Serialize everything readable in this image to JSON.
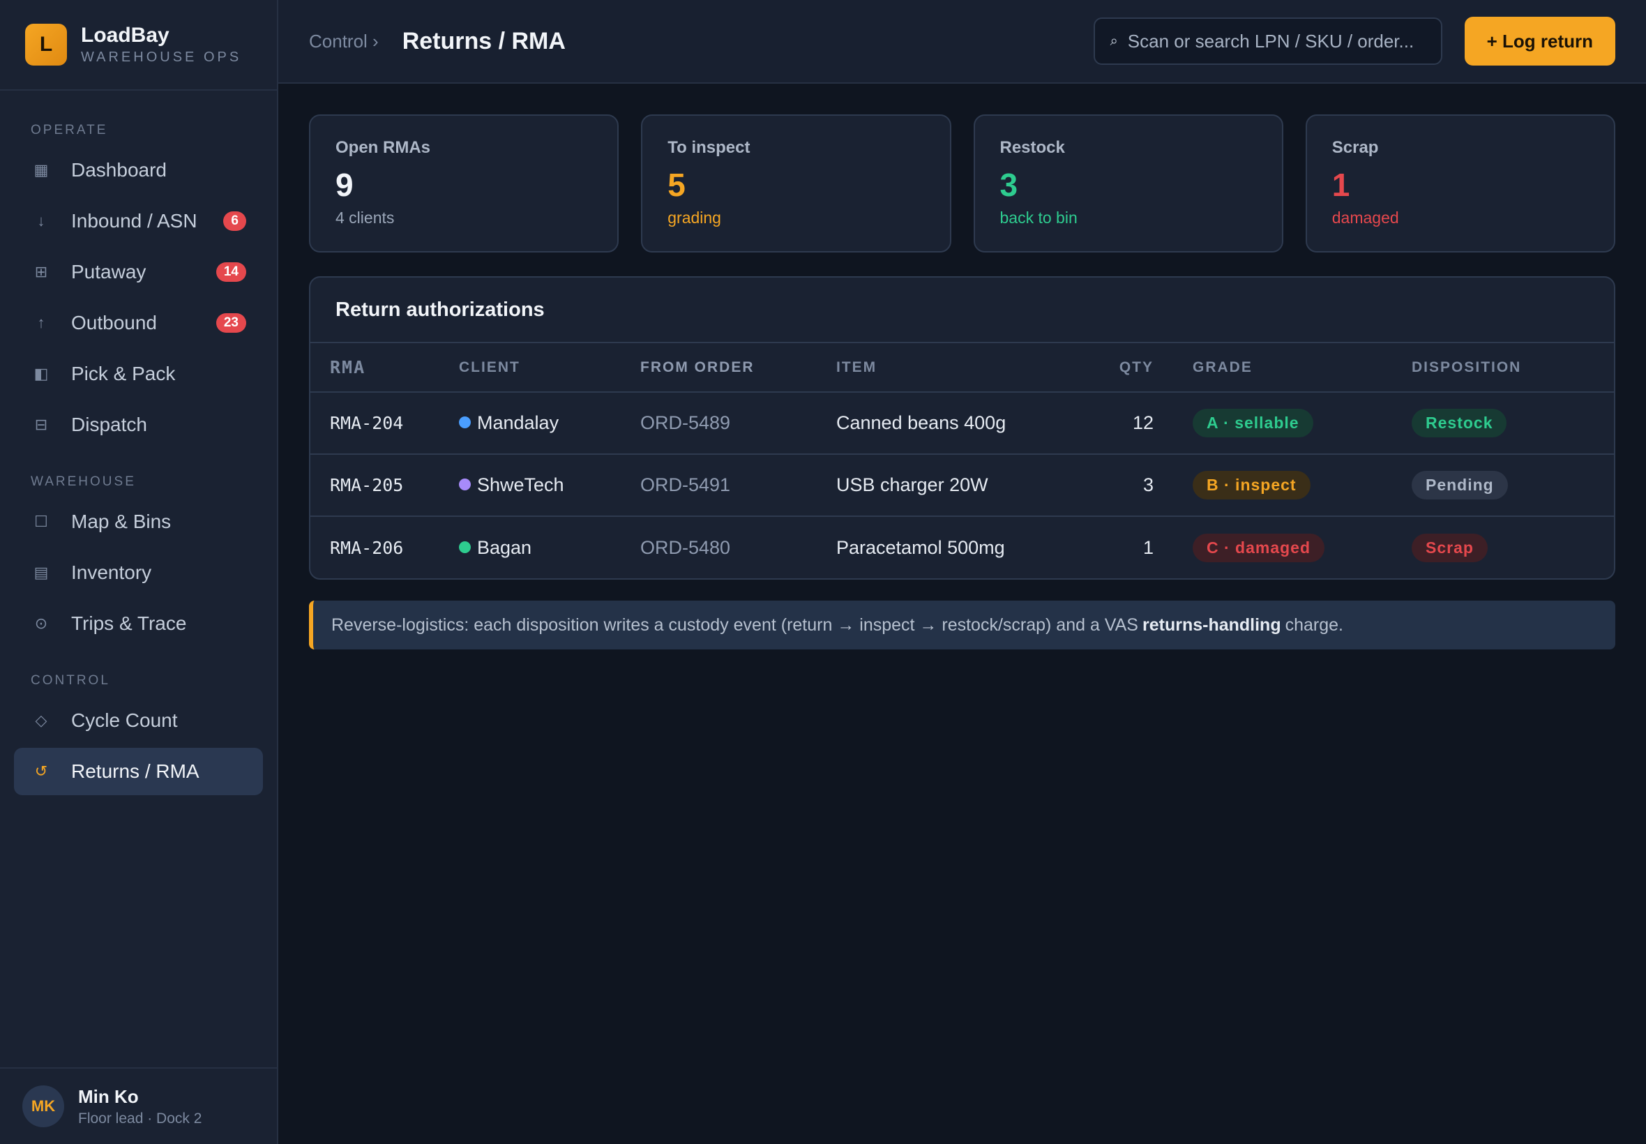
{
  "brand": {
    "logo_letter": "L",
    "name": "LoadBay",
    "subtitle": "WAREHOUSE OPS"
  },
  "sidebar": {
    "sections": {
      "operate": "OPERATE",
      "warehouse": "WAREHOUSE",
      "control": "CONTROL"
    },
    "items": [
      {
        "label": "Dashboard",
        "icon": "dashboard-icon"
      },
      {
        "label": "Inbound / ASN",
        "icon": "arrow-down-icon",
        "badge": "6"
      },
      {
        "label": "Putaway",
        "icon": "grid-icon",
        "badge": "14"
      },
      {
        "label": "Outbound",
        "icon": "arrow-up-icon",
        "badge": "23"
      },
      {
        "label": "Pick & Pack",
        "icon": "box-icon"
      },
      {
        "label": "Dispatch",
        "icon": "truck-icon"
      },
      {
        "label": "Map & Bins",
        "icon": "map-icon"
      },
      {
        "label": "Inventory",
        "icon": "inventory-icon"
      },
      {
        "label": "Trips & Trace",
        "icon": "target-icon"
      },
      {
        "label": "Cycle Count",
        "icon": "diamond-icon"
      },
      {
        "label": "Returns / RMA",
        "icon": "return-icon"
      }
    ]
  },
  "user": {
    "initials": "MK",
    "name": "Min Ko",
    "role": "Floor lead · Dock 2"
  },
  "header": {
    "breadcrumb": "Control ›",
    "title": "Returns / RMA",
    "search_placeholder": "Scan or search LPN / SKU / order...",
    "primary_button": "+ Log return"
  },
  "stats": [
    {
      "label": "Open RMAs",
      "value": "9",
      "sub": "4 clients",
      "color": "#f2f5f9",
      "sub_color": "#9aa6b8"
    },
    {
      "label": "To inspect",
      "value": "5",
      "sub": "grading",
      "color": "#f5a623",
      "sub_color": "#f5a623"
    },
    {
      "label": "Restock",
      "value": "3",
      "sub": "back to bin",
      "color": "#2ecc8f",
      "sub_color": "#2ecc8f"
    },
    {
      "label": "Scrap",
      "value": "1",
      "sub": "damaged",
      "color": "#e5484d",
      "sub_color": "#e5484d"
    }
  ],
  "table": {
    "title": "Return authorizations",
    "columns": [
      "RMA",
      "CLIENT",
      "FROM ORDER",
      "ITEM",
      "QTY",
      "GRADE",
      "DISPOSITION"
    ],
    "rows": [
      {
        "rma": "RMA-204",
        "client": "Mandalay",
        "client_color": "#4a9eff",
        "order": "ORD-5489",
        "item": "Canned beans 400g",
        "qty": "12",
        "grade": "A · sellable",
        "grade_style": "green",
        "disposition": "Restock",
        "disp_style": "green"
      },
      {
        "rma": "RMA-205",
        "client": "ShweTech",
        "client_color": "#a78bfa",
        "order": "ORD-5491",
        "item": "USB charger 20W",
        "qty": "3",
        "grade": "B · inspect",
        "grade_style": "amber",
        "disposition": "Pending",
        "disp_style": "gray"
      },
      {
        "rma": "RMA-206",
        "client": "Bagan",
        "client_color": "#2ecc8f",
        "order": "ORD-5480",
        "item": "Paracetamol 500mg",
        "qty": "1",
        "grade": "C · damaged",
        "grade_style": "red",
        "disposition": "Scrap",
        "disp_style": "red"
      }
    ]
  },
  "note": {
    "before": "Reverse-logistics: each disposition writes a custody event (return → inspect → restock/scrap) and a VAS",
    "bold": "returns-handling",
    "after": "charge."
  },
  "colors": {
    "accent": "#f5a623",
    "green": "#2ecc8f",
    "red": "#e5484d",
    "badge": "#e5484d"
  }
}
